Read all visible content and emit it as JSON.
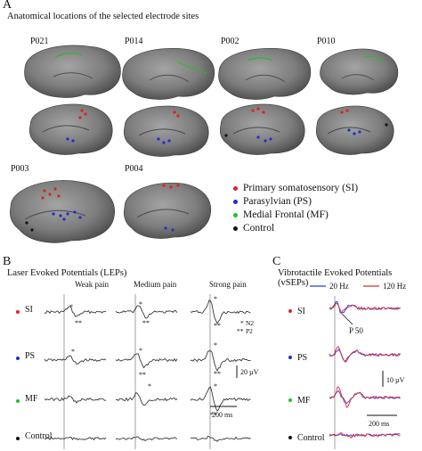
{
  "panelA": {
    "letter": "A",
    "title": "Anatomical locations of the selected electrode sites",
    "patients": [
      "P021",
      "P014",
      "P002",
      "P010",
      "P003",
      "P004"
    ],
    "legend": [
      {
        "label": "Primary somatosensory (SI)",
        "color": "#e02020"
      },
      {
        "label": "Parasylvian (PS)",
        "color": "#1f2fd0"
      },
      {
        "label": "Medial Frontal (MF)",
        "color": "#22c022"
      },
      {
        "label": "Control",
        "color": "#111111"
      }
    ]
  },
  "panelB": {
    "letter": "B",
    "title": "Laser Evoked Potentials (LEPs)",
    "columns": [
      "Weak pain",
      "Medium pain",
      "Strong pain"
    ],
    "rows": [
      {
        "label": "SI",
        "color": "#e02020"
      },
      {
        "label": "PS",
        "color": "#1f2fd0"
      },
      {
        "label": "MF",
        "color": "#22c022"
      },
      {
        "label": "Control",
        "color": "#111111"
      }
    ],
    "n2_marker": "*",
    "n2_label": "N2",
    "p2_marker": "**",
    "p2_label": "P2",
    "scale_amp": "20 µV",
    "scale_time": "200 ms"
  },
  "panelC": {
    "letter": "C",
    "title": "Vibrotactile Evoked Potentials (vSEPs)",
    "legend": [
      {
        "label": "20 Hz",
        "color": "#2a3fe0"
      },
      {
        "label": "120 Hz",
        "color": "#e02a2a"
      }
    ],
    "rows": [
      {
        "label": "SI",
        "color": "#e02020"
      },
      {
        "label": "PS",
        "color": "#1f2fd0"
      },
      {
        "label": "MF",
        "color": "#22c022"
      },
      {
        "label": "Control",
        "color": "#111111"
      }
    ],
    "annotation": "P 50",
    "scale_amp": "10 µV",
    "scale_time": "200 ms"
  }
}
